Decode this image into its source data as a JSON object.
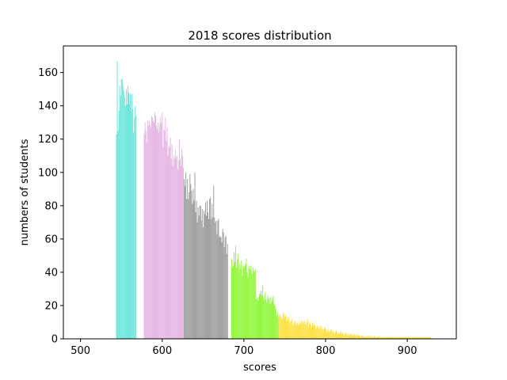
{
  "chart_data": {
    "type": "bar",
    "title": "2018 scores distribution",
    "xlabel": "scores",
    "ylabel": "numbers of students",
    "xlim": [
      479,
      960
    ],
    "ylim": [
      0,
      176
    ],
    "xticks": [
      500,
      600,
      700,
      800,
      900
    ],
    "yticks": [
      0,
      20,
      40,
      60,
      80,
      100,
      120,
      140,
      160
    ],
    "grid": false,
    "legend": "none",
    "series": [
      {
        "color": "#64e5d8",
        "x": [
          544,
          545,
          546,
          547,
          548,
          549,
          550,
          551,
          552,
          553,
          554,
          555,
          556,
          557,
          558,
          559,
          560,
          561,
          562,
          563,
          564,
          565,
          566,
          567,
          568
        ],
        "values": [
          123,
          167,
          125,
          137,
          152,
          146,
          156,
          156,
          152,
          149,
          145,
          140,
          150,
          141,
          152,
          148,
          141,
          147,
          137,
          147,
          138,
          124,
          133,
          140,
          134
        ]
      },
      {
        "color": "#e4b3e2",
        "x": [
          578,
          579,
          580,
          581,
          582,
          583,
          584,
          585,
          586,
          587,
          588,
          589,
          590,
          591,
          592,
          593,
          594,
          595,
          596,
          597,
          598,
          599,
          600,
          601,
          602,
          603,
          604,
          605,
          606,
          607,
          608,
          609,
          610,
          611,
          612,
          613,
          614,
          615,
          616,
          617,
          618,
          619,
          620,
          621,
          622,
          623,
          624,
          625,
          626
        ],
        "values": [
          123,
          130,
          125,
          118,
          131,
          128,
          131,
          129,
          127,
          134,
          133,
          131,
          130,
          136,
          134,
          128,
          126,
          130,
          124,
          129,
          133,
          130,
          136,
          115,
          126,
          125,
          133,
          119,
          127,
          110,
          116,
          115,
          121,
          108,
          117,
          104,
          110,
          108,
          114,
          109,
          110,
          102,
          107,
          120,
          108,
          104,
          114,
          110,
          103
        ]
      },
      {
        "color": "#999999",
        "x": [
          627,
          628,
          629,
          630,
          631,
          632,
          633,
          634,
          635,
          636,
          637,
          638,
          639,
          640,
          641,
          642,
          643,
          644,
          645,
          646,
          647,
          648,
          649,
          650,
          651,
          652,
          653,
          654,
          655,
          656,
          657,
          658,
          659,
          660,
          661,
          662,
          663,
          664,
          665,
          666,
          667,
          668,
          669,
          670,
          671,
          672,
          673,
          674,
          675,
          676,
          677,
          678,
          679,
          680
        ],
        "values": [
          96,
          92,
          100,
          84,
          96,
          84,
          88,
          99,
          93,
          89,
          81,
          90,
          83,
          100,
          76,
          83,
          70,
          79,
          74,
          80,
          80,
          71,
          78,
          67,
          77,
          75,
          82,
          74,
          83,
          76,
          72,
          84,
          85,
          72,
          81,
          73,
          92,
          73,
          70,
          71,
          63,
          71,
          72,
          61,
          62,
          61,
          58,
          66,
          64,
          55,
          61,
          62,
          51,
          57
        ]
      },
      {
        "color": "#8cf731",
        "x": [
          685,
          686,
          687,
          688,
          689,
          690,
          691,
          692,
          693,
          694,
          695,
          696,
          697,
          698,
          699,
          700,
          701,
          702,
          703,
          704,
          705,
          706,
          707,
          708,
          709,
          710,
          711,
          712,
          713,
          714,
          715,
          716,
          717,
          718,
          719,
          720,
          721,
          722,
          723,
          724,
          725,
          726,
          727,
          728,
          729,
          730,
          731,
          732,
          733,
          734,
          735,
          736,
          737,
          738,
          739,
          740,
          741,
          742
        ],
        "values": [
          48,
          43,
          44,
          52,
          46,
          56,
          43,
          48,
          51,
          40,
          45,
          42,
          47,
          38,
          44,
          43,
          44,
          45,
          48,
          40,
          37,
          44,
          42,
          44,
          41,
          39,
          43,
          41,
          40,
          42,
          24,
          24,
          23,
          25,
          27,
          27,
          29,
          26,
          32,
          25,
          23,
          28,
          24,
          22,
          26,
          24,
          25,
          21,
          25,
          22,
          24,
          26,
          21,
          20,
          18,
          14,
          16,
          13
        ]
      },
      {
        "color": "#ffdf3c",
        "x": [
          743,
          744,
          745,
          746,
          747,
          748,
          749,
          750,
          751,
          752,
          753,
          754,
          755,
          756,
          757,
          758,
          759,
          760,
          761,
          762,
          763,
          764,
          765,
          766,
          767,
          768,
          769,
          770,
          771,
          772,
          773,
          774,
          775,
          776,
          777,
          778,
          779,
          780,
          781,
          782,
          783,
          784,
          785,
          786,
          787,
          788,
          789,
          790,
          791,
          792,
          793,
          794,
          795,
          796,
          797,
          798,
          799,
          800,
          801,
          802,
          803,
          804,
          805,
          806,
          807,
          808,
          809,
          810,
          811,
          812,
          813,
          814,
          815,
          816,
          817,
          818,
          819,
          820,
          821,
          822,
          823,
          824,
          825,
          826,
          827,
          828,
          829,
          830,
          831,
          832,
          833,
          834,
          835,
          836,
          837,
          838,
          839,
          840,
          841,
          842,
          843,
          844,
          845,
          846,
          847,
          848,
          849,
          850,
          851,
          852,
          853,
          854,
          855,
          856,
          857,
          858,
          859,
          860,
          861,
          862,
          863,
          864,
          865,
          866,
          867,
          868,
          869,
          870,
          871,
          872,
          873,
          874,
          875,
          876,
          877,
          878,
          879,
          880,
          881,
          882,
          883,
          884,
          885,
          886,
          887,
          888,
          889,
          890,
          891,
          892,
          893,
          894,
          895,
          896,
          897,
          898,
          899,
          900,
          901,
          902,
          903,
          904,
          905,
          906,
          907,
          908,
          909,
          910,
          911,
          912,
          913,
          914,
          915,
          916,
          917,
          918,
          919,
          920,
          921,
          922,
          923,
          924,
          925,
          926,
          927,
          928,
          929
        ],
        "values": [
          14,
          15,
          13,
          14,
          12,
          16,
          15,
          13,
          14,
          10,
          12,
          11,
          13,
          9,
          10,
          11,
          12,
          8,
          9,
          10,
          11,
          8,
          10,
          9,
          8,
          11,
          9,
          10,
          11,
          9,
          10,
          11,
          9,
          8,
          10,
          12,
          7,
          10,
          9,
          8,
          7,
          10,
          8,
          9,
          8,
          7,
          6,
          8,
          7,
          6,
          7,
          8,
          6,
          7,
          5,
          6,
          7,
          6,
          5,
          4,
          6,
          5,
          4,
          5,
          6,
          4,
          5,
          4,
          3,
          4,
          5,
          4,
          3,
          4,
          3,
          4,
          4,
          3,
          4,
          3,
          2,
          3,
          4,
          3,
          2,
          3,
          2,
          3,
          3,
          2,
          3,
          2,
          3,
          2,
          3,
          2,
          2,
          3,
          2,
          2,
          1,
          2,
          2,
          1,
          2,
          1,
          1,
          2,
          1,
          2,
          1,
          2,
          1,
          1,
          2,
          1,
          1,
          2,
          1,
          1,
          1,
          1,
          2,
          1,
          1,
          1,
          1,
          1,
          1,
          1,
          1,
          1,
          1,
          1,
          1,
          1,
          1,
          1,
          1,
          1,
          1,
          1,
          1,
          1,
          1,
          1,
          1,
          1,
          1,
          1,
          1,
          1,
          1,
          1,
          1,
          1,
          1,
          1,
          1,
          1,
          1,
          1,
          1,
          1,
          1,
          1,
          1,
          1,
          1,
          1,
          1,
          1,
          1,
          1,
          1,
          1,
          1,
          1,
          1,
          1,
          1,
          1,
          1,
          1,
          1,
          1,
          1
        ]
      }
    ]
  }
}
